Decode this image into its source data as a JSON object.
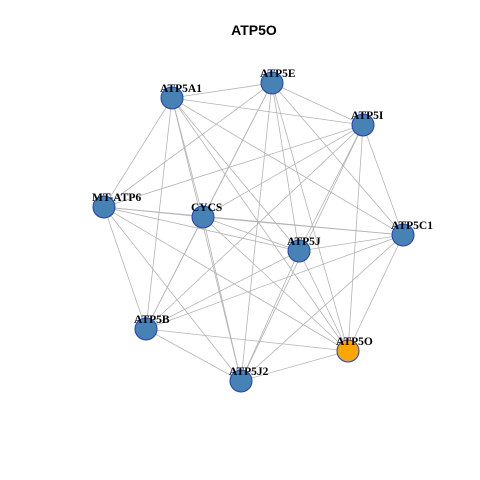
{
  "title": "ATP5O",
  "nodes": [
    {
      "label": "ATP5A1",
      "color": "#4682b4"
    },
    {
      "label": "ATP5E",
      "color": "#4682b4"
    },
    {
      "label": "ATP5I",
      "color": "#4682b4"
    },
    {
      "label": "MT-ATP6",
      "color": "#4682b4"
    },
    {
      "label": "CYCS",
      "color": "#4682b4"
    },
    {
      "label": "ATP5J",
      "color": "#4682b4"
    },
    {
      "label": "ATP5C1",
      "color": "#4682b4"
    },
    {
      "label": "ATP5B",
      "color": "#4682b4"
    },
    {
      "label": "ATP5O",
      "color": "#ffa500"
    },
    {
      "label": "ATP5J2",
      "color": "#4682b4"
    }
  ],
  "edges": [
    [
      0,
      1
    ],
    [
      0,
      2
    ],
    [
      0,
      3
    ],
    [
      0,
      4
    ],
    [
      0,
      5
    ],
    [
      0,
      6
    ],
    [
      0,
      7
    ],
    [
      0,
      8
    ],
    [
      0,
      9
    ],
    [
      1,
      2
    ],
    [
      1,
      3
    ],
    [
      1,
      4
    ],
    [
      1,
      5
    ],
    [
      1,
      6
    ],
    [
      1,
      7
    ],
    [
      1,
      8
    ],
    [
      1,
      9
    ],
    [
      2,
      3
    ],
    [
      2,
      4
    ],
    [
      2,
      5
    ],
    [
      2,
      6
    ],
    [
      2,
      7
    ],
    [
      2,
      8
    ],
    [
      2,
      9
    ],
    [
      3,
      4
    ],
    [
      3,
      5
    ],
    [
      3,
      6
    ],
    [
      3,
      7
    ],
    [
      3,
      8
    ],
    [
      3,
      9
    ],
    [
      4,
      5
    ],
    [
      4,
      6
    ],
    [
      4,
      7
    ],
    [
      4,
      8
    ],
    [
      4,
      9
    ],
    [
      5,
      6
    ],
    [
      5,
      7
    ],
    [
      5,
      8
    ],
    [
      5,
      9
    ],
    [
      6,
      7
    ],
    [
      6,
      8
    ],
    [
      6,
      9
    ],
    [
      7,
      8
    ],
    [
      7,
      9
    ],
    [
      8,
      9
    ]
  ]
}
